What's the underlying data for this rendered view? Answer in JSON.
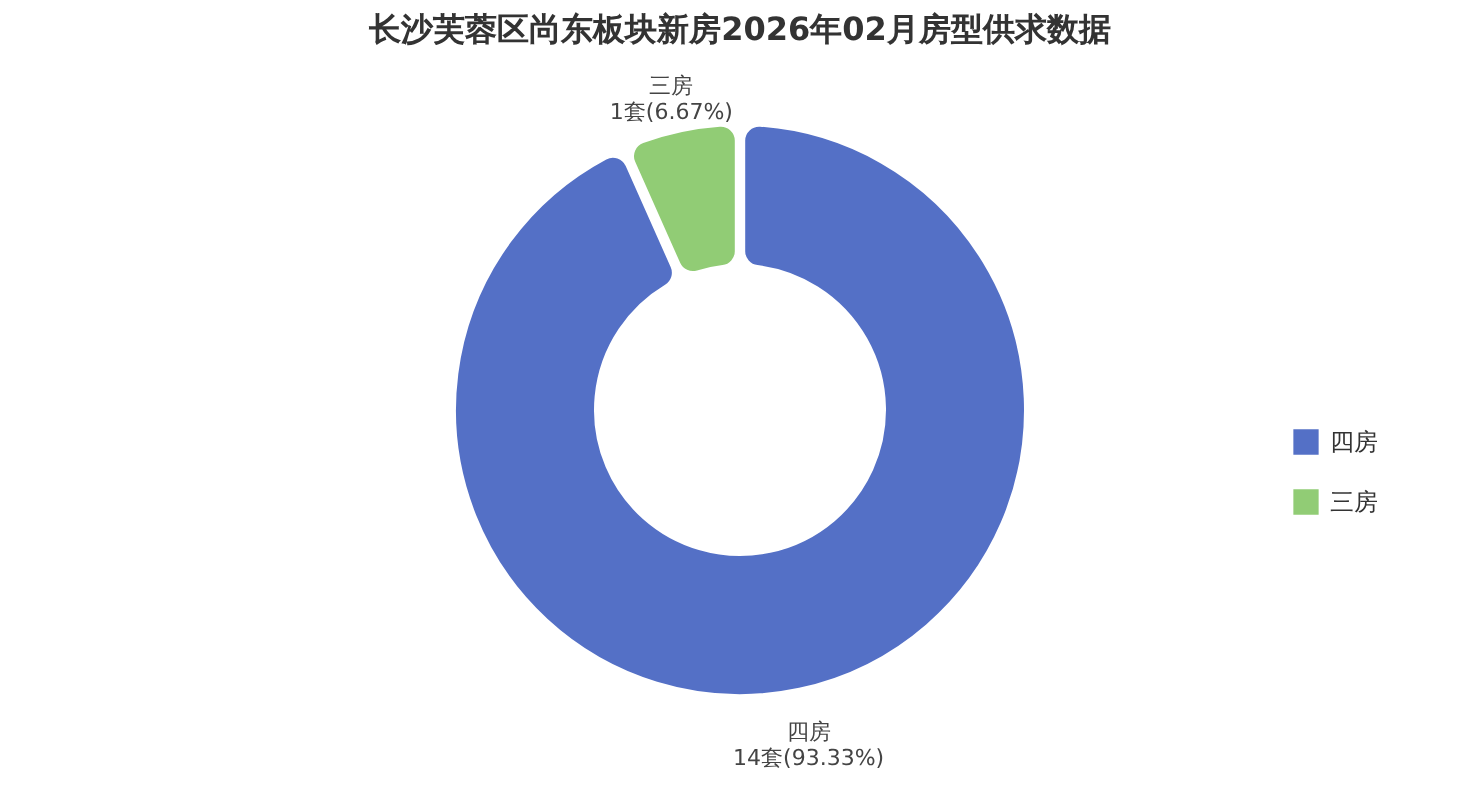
{
  "chart_data": {
    "type": "donut",
    "title": "长沙芙蓉区尚东板块新房2026年02月房型供求数据",
    "categories": [
      "四房",
      "三房"
    ],
    "values": [
      14,
      1
    ],
    "value_labels": [
      "14套(93.33%)",
      "1套(6.67%)"
    ],
    "colors": [
      "#5470c6",
      "#91cc75"
    ],
    "legend": "right"
  }
}
